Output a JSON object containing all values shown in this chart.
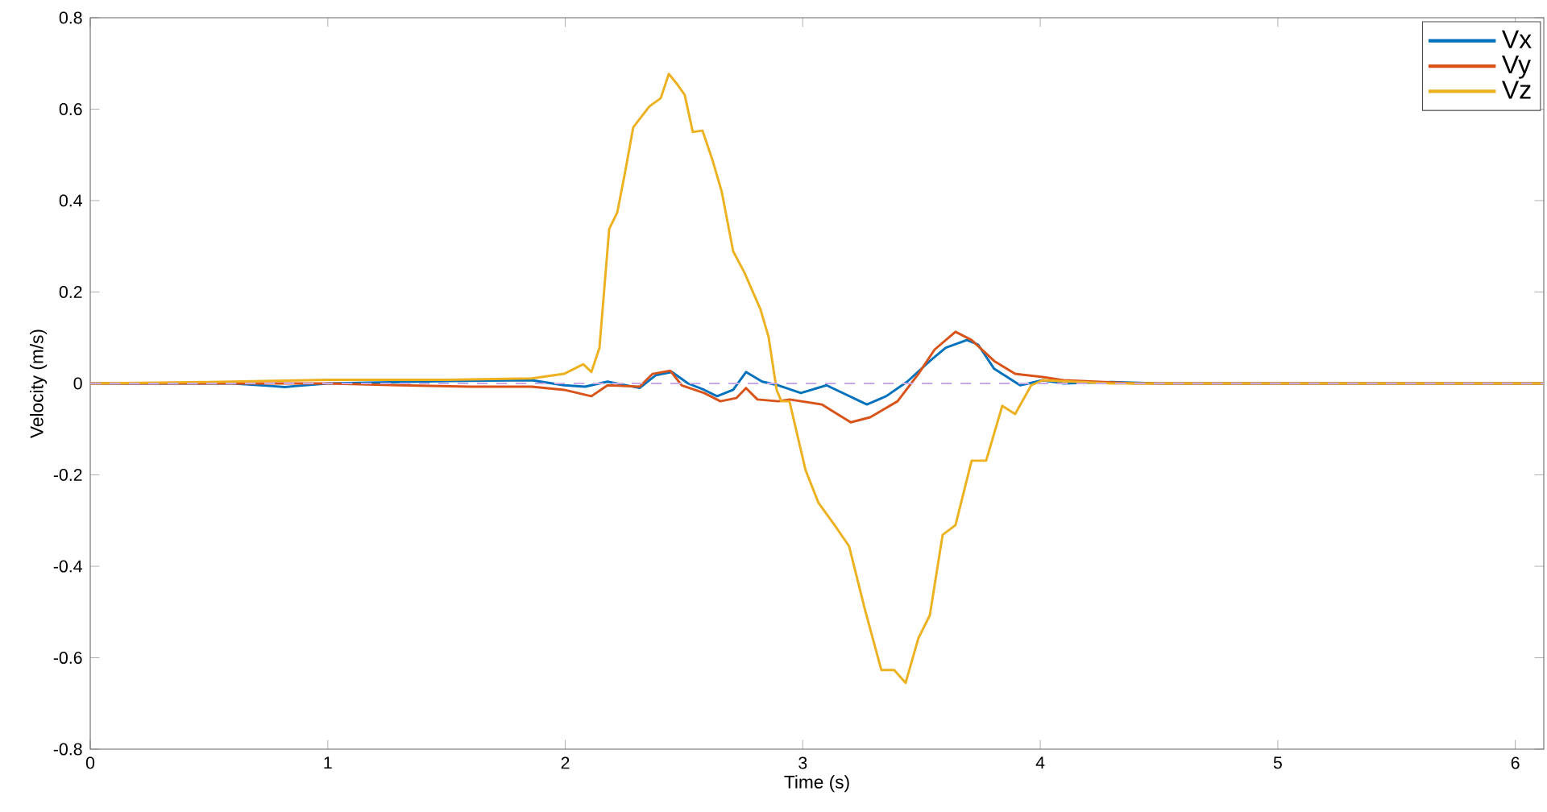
{
  "chart_data": {
    "type": "line",
    "xlabel": "Time (s)",
    "ylabel": "Velocity (m/s)",
    "xlim": [
      0,
      6.12
    ],
    "ylim": [
      -0.8,
      0.8
    ],
    "xticks": [
      0,
      1,
      2,
      3,
      4,
      5,
      6
    ],
    "yticks": [
      -0.8,
      -0.6,
      -0.4,
      -0.2,
      0,
      0.2,
      0.4,
      0.6,
      0.8
    ],
    "legend": "top right",
    "line_style": "solid",
    "marker": "none",
    "ref_lines": [
      {
        "axis": "y",
        "value": 0,
        "color": "#c9a9e3",
        "line_style": "dashed"
      }
    ],
    "series": [
      {
        "name": "Vx",
        "color": "#0072bd",
        "x": [
          0,
          0.6,
          0.77,
          0.82,
          0.86,
          1.0,
          1.5,
          1.859,
          1.995,
          2.083,
          2.178,
          2.313,
          2.381,
          2.449,
          2.517,
          2.585,
          2.639,
          2.707,
          2.761,
          2.829,
          2.897,
          2.992,
          3.1,
          3.27,
          3.351,
          3.44,
          3.535,
          3.602,
          3.691,
          3.738,
          3.806,
          3.915,
          4.01,
          4.098,
          4.3,
          4.5,
          6.12
        ],
        "values": [
          0,
          0,
          -0.006,
          -0.008,
          -0.006,
          0,
          0.005,
          0.007,
          -0.004,
          -0.007,
          0.004,
          -0.01,
          0.018,
          0.025,
          0,
          -0.014,
          -0.028,
          -0.014,
          0.025,
          0.004,
          -0.004,
          -0.021,
          -0.004,
          -0.046,
          -0.028,
          0.004,
          0.049,
          0.078,
          0.095,
          0.085,
          0.032,
          -0.004,
          0.007,
          0,
          0.003,
          0,
          0
        ]
      },
      {
        "name": "Vy",
        "color": "#d95319",
        "x": [
          0,
          1.0,
          1.3,
          1.6,
          1.859,
          1.995,
          2.11,
          2.178,
          2.313,
          2.368,
          2.442,
          2.49,
          2.585,
          2.653,
          2.72,
          2.761,
          2.809,
          2.897,
          2.944,
          3.08,
          3.202,
          3.284,
          3.399,
          3.487,
          3.555,
          3.643,
          3.711,
          3.806,
          3.894,
          4.01,
          4.098,
          4.4,
          6.12
        ],
        "values": [
          0,
          0,
          -0.004,
          -0.007,
          -0.007,
          -0.014,
          -0.028,
          -0.004,
          -0.007,
          0.021,
          0.028,
          -0.004,
          -0.021,
          -0.039,
          -0.032,
          -0.01,
          -0.035,
          -0.039,
          -0.035,
          -0.046,
          -0.085,
          -0.074,
          -0.039,
          0.021,
          0.074,
          0.113,
          0.095,
          0.049,
          0.021,
          0.014,
          0.007,
          0,
          0
        ]
      },
      {
        "name": "Vz",
        "color": "#edb120",
        "x": [
          0,
          0.5,
          1.0,
          1.5,
          1.859,
          1.995,
          2.076,
          2.11,
          2.144,
          2.185,
          2.219,
          2.253,
          2.286,
          2.354,
          2.402,
          2.436,
          2.469,
          2.503,
          2.537,
          2.578,
          2.619,
          2.659,
          2.707,
          2.754,
          2.822,
          2.856,
          2.89,
          2.91,
          2.944,
          3.012,
          3.066,
          3.134,
          3.195,
          3.263,
          3.331,
          3.385,
          3.433,
          3.487,
          3.535,
          3.589,
          3.643,
          3.711,
          3.772,
          3.84,
          3.894,
          3.962,
          4.01,
          4.3,
          6.12
        ],
        "values": [
          0,
          0.003,
          0.008,
          0.008,
          0.011,
          0.021,
          0.042,
          0.025,
          0.078,
          0.338,
          0.374,
          0.465,
          0.56,
          0.606,
          0.624,
          0.677,
          0.656,
          0.631,
          0.55,
          0.553,
          0.49,
          0.419,
          0.289,
          0.243,
          0.162,
          0.102,
          -0.014,
          -0.039,
          -0.039,
          -0.19,
          -0.261,
          -0.31,
          -0.356,
          -0.497,
          -0.627,
          -0.627,
          -0.655,
          -0.557,
          -0.507,
          -0.331,
          -0.31,
          -0.169,
          -0.169,
          -0.049,
          -0.067,
          -0.004,
          0.007,
          0,
          0
        ]
      }
    ]
  }
}
